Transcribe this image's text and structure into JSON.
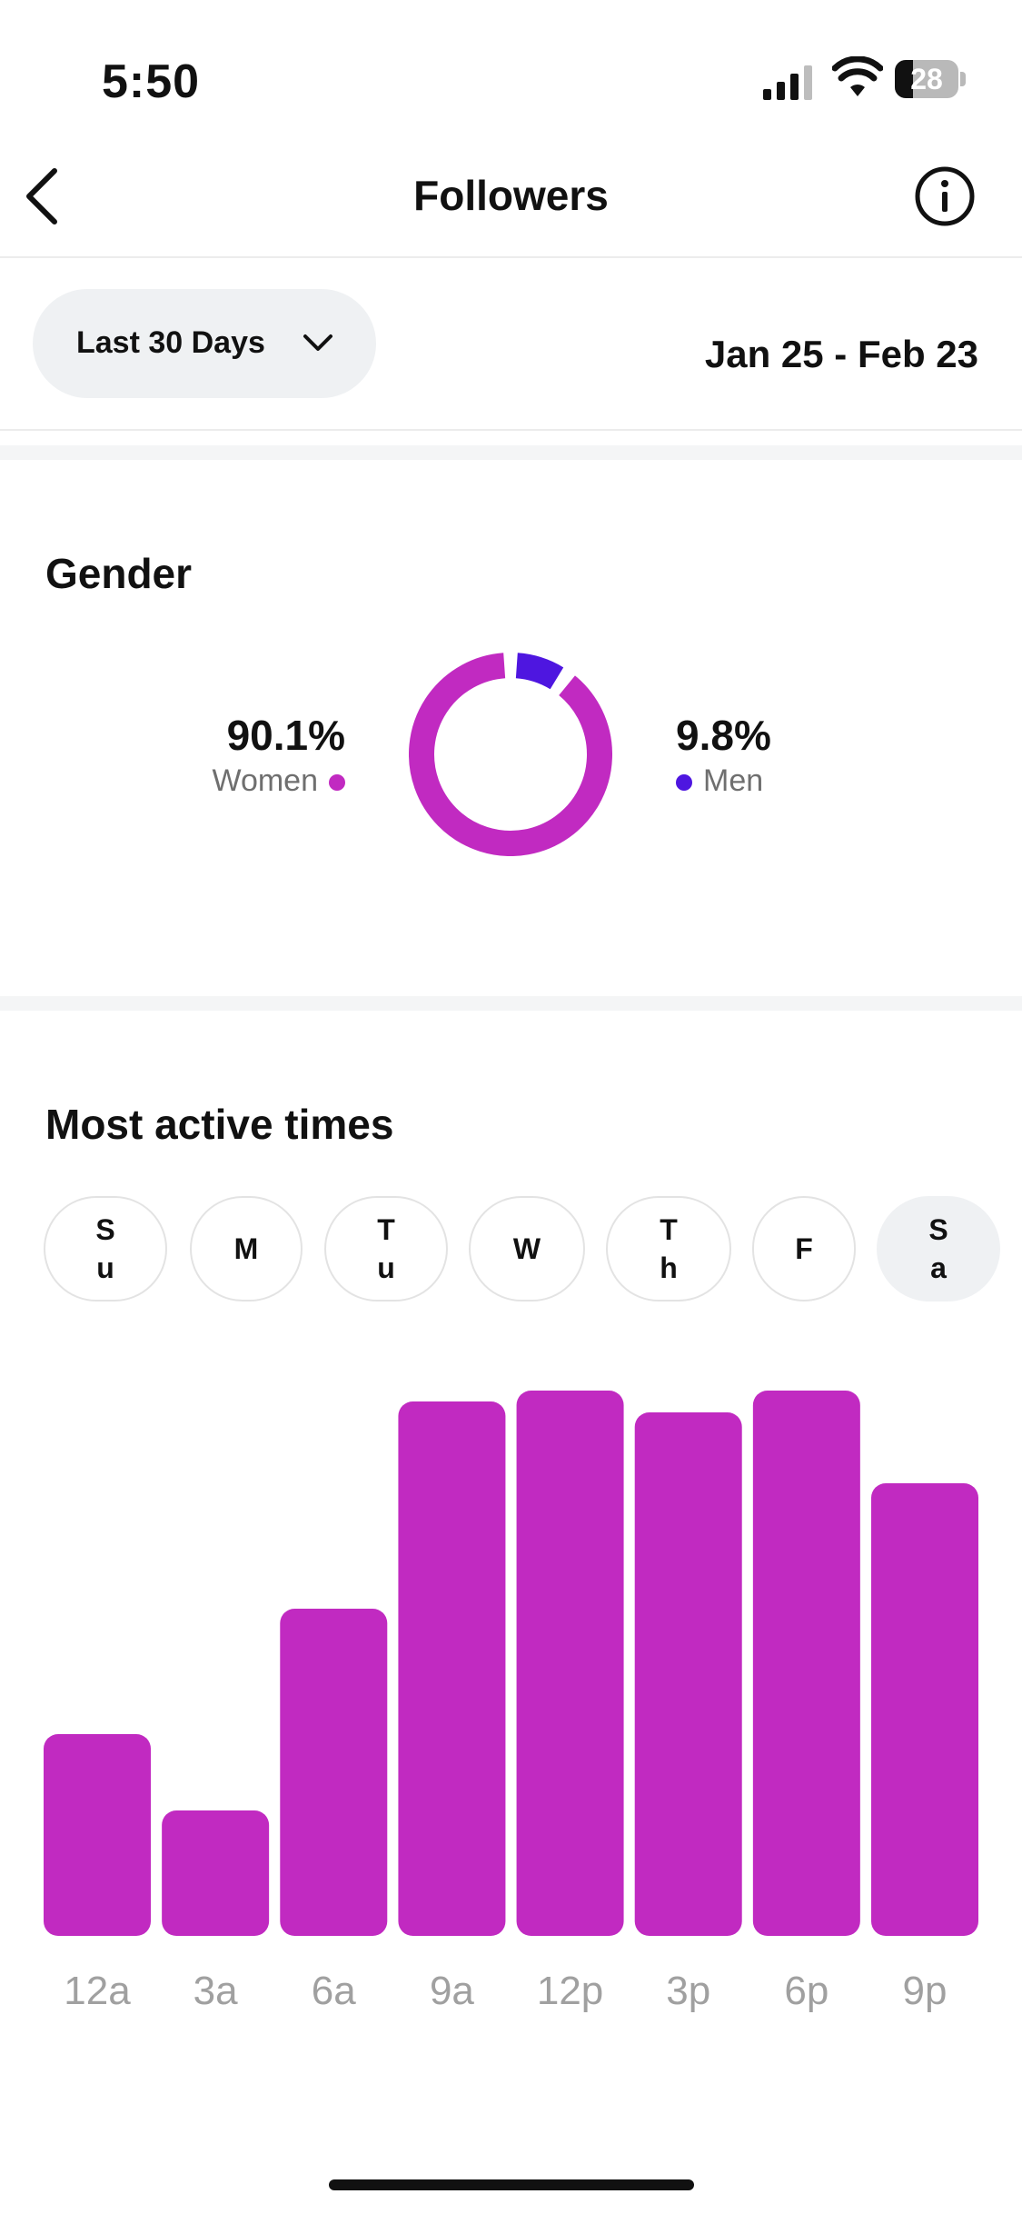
{
  "status_bar": {
    "time": "5:50",
    "battery": "28"
  },
  "nav": {
    "title": "Followers",
    "back_icon": "chevron-left-icon",
    "info_icon": "info-circle-icon"
  },
  "filter": {
    "range_label": "Last 30 Days",
    "date_range": "Jan 25 - Feb 23"
  },
  "gender": {
    "title": "Gender",
    "women": {
      "percent": "90.1%",
      "label": "Women",
      "value": 90.1,
      "color": "#c12ac1"
    },
    "men": {
      "percent": "9.8%",
      "label": "Men",
      "value": 9.8,
      "color": "#4e16e0"
    }
  },
  "activity": {
    "title": "Most active times",
    "days": [
      {
        "label": "S\nu",
        "selected": false
      },
      {
        "label": "M",
        "selected": false
      },
      {
        "label": "T\nu",
        "selected": false
      },
      {
        "label": "W",
        "selected": false
      },
      {
        "label": "T\nh",
        "selected": false
      },
      {
        "label": "F",
        "selected": false
      },
      {
        "label": "S\na",
        "selected": true
      }
    ]
  },
  "chart_data": {
    "type": "bar",
    "categories": [
      "12a",
      "3a",
      "6a",
      "9a",
      "12p",
      "3p",
      "6p",
      "9p"
    ],
    "values": [
      37,
      23,
      60,
      98,
      100,
      96,
      100,
      83
    ],
    "ylim": [
      0,
      100
    ],
    "bar_color": "#c12ac1",
    "tick_color": "#a0a0a0",
    "grid": false
  }
}
